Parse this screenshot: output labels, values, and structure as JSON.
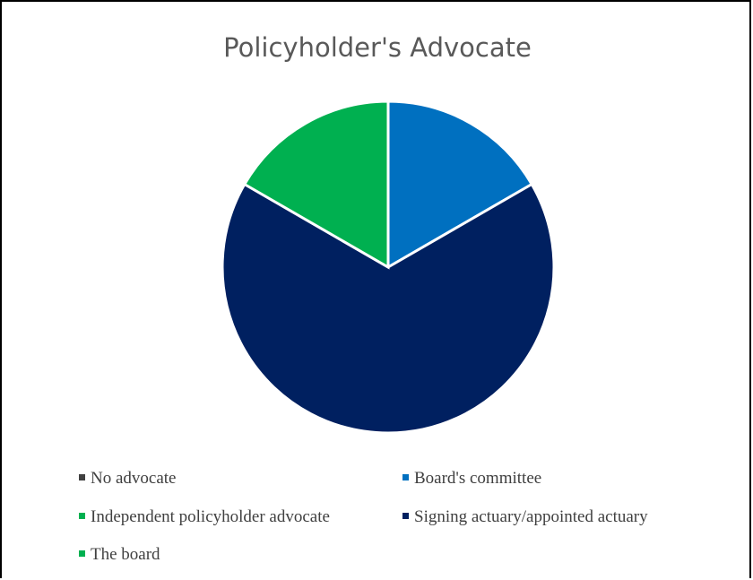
{
  "chart_data": {
    "type": "pie",
    "title": "Policyholder's Advocate",
    "categories": [
      "No advocate",
      "Board's committee",
      "Independent policyholder advocate",
      "Signing actuary/appointed actuary",
      "The board"
    ],
    "values": [
      0,
      1,
      0,
      4,
      1
    ],
    "colors": [
      "#404040",
      "#0070c0",
      "#00b050",
      "#002060",
      "#00b050"
    ],
    "legend_position": "bottom"
  }
}
